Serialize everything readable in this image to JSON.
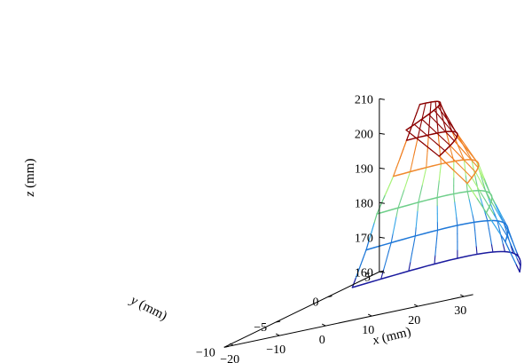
{
  "chart_data": {
    "type": "3d-wireframe-surface",
    "title": "",
    "axes": {
      "x": {
        "label_var": "x",
        "label_unit": " (mm)",
        "ticks": [
          -20,
          -10,
          0,
          10,
          20,
          30
        ],
        "range": [
          -22,
          32
        ]
      },
      "y": {
        "label_var": "y",
        "label_unit": " (mm)",
        "ticks": [
          5,
          0,
          -5,
          -10
        ],
        "range": [
          -10,
          5
        ]
      },
      "z": {
        "label_var": "z",
        "label_unit": " (mm)",
        "ticks": [
          160,
          170,
          180,
          190,
          200,
          210
        ],
        "range": [
          160,
          210
        ]
      }
    },
    "grid": false,
    "colormap_by_height": [
      {
        "z": 160,
        "color": "#1a1a9e"
      },
      {
        "z": 163,
        "color": "#1f78d8"
      },
      {
        "z": 172,
        "color": "#36a6e8"
      },
      {
        "z": 178,
        "color": "#6fcf8a"
      },
      {
        "z": 185,
        "color": "#a8f27a"
      },
      {
        "z": 189,
        "color": "#f08a2e"
      },
      {
        "z": 195,
        "color": "#f07a1a"
      },
      {
        "z": 199,
        "color": "#8b0000"
      },
      {
        "z": 215,
        "color": "#7a0a0a"
      }
    ],
    "surface": {
      "description_sections": "twisted blade-like surface; lower section spans x from about -20 to 30 mm, upper section narrows and shifts",
      "sections": [
        {
          "z": 160,
          "x_start": -20,
          "x_end": 32,
          "y_start": 1.5,
          "y_end": -5.5,
          "bulge": 5.5
        },
        {
          "z": 170,
          "x_start": -17,
          "x_end": 30,
          "y_start": 1.5,
          "y_end": -6.0,
          "bulge": 5.0
        },
        {
          "z": 180,
          "x_start": -14,
          "x_end": 27,
          "y_start": 1.2,
          "y_end": -6.5,
          "bulge": 4.5
        },
        {
          "z": 190,
          "x_start": -10,
          "x_end": 24,
          "y_start": 1.0,
          "y_end": -7.0,
          "bulge": 4.0
        },
        {
          "z": 200,
          "x_start": -6,
          "x_end": 19,
          "y_start": 0.5,
          "y_end": -7.5,
          "bulge": 3.2
        },
        {
          "z": 210,
          "x_start": -2,
          "x_end": 13,
          "y_start": 0.0,
          "y_end": -8.0,
          "bulge": 2.6
        }
      ]
    }
  }
}
